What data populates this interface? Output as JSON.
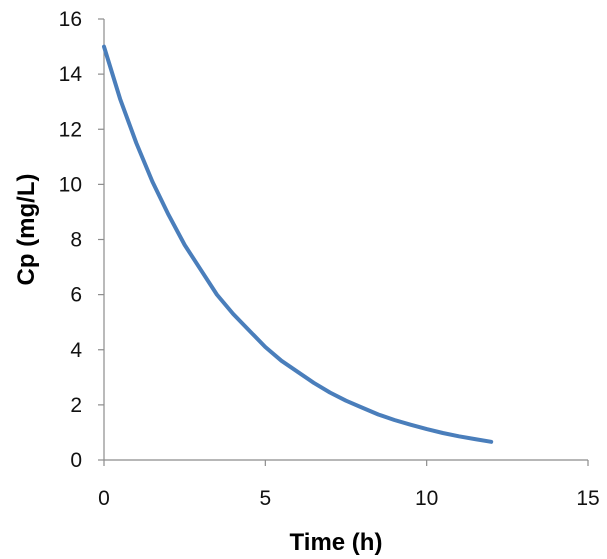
{
  "chart_data": {
    "type": "line",
    "title": "",
    "xlabel": "Time (h)",
    "ylabel": "Cp (mg/L)",
    "xlim": [
      0,
      15
    ],
    "ylim": [
      0,
      16
    ],
    "x_ticks": [
      0,
      5,
      10,
      15
    ],
    "y_ticks": [
      0,
      2,
      4,
      6,
      8,
      10,
      12,
      14,
      16
    ],
    "grid": false,
    "legend": "none",
    "series": [
      {
        "color": "#4a7ebb",
        "x": [
          0,
          0.5,
          1,
          1.5,
          2,
          2.5,
          3,
          3.5,
          4,
          4.5,
          5,
          5.5,
          6,
          6.5,
          7,
          7.5,
          8,
          8.5,
          9,
          9.5,
          10,
          10.5,
          11,
          11.5,
          12
        ],
        "y": [
          15.0,
          13.1,
          11.5,
          10.1,
          8.9,
          7.8,
          6.9,
          6.0,
          5.3,
          4.7,
          4.1,
          3.6,
          3.2,
          2.8,
          2.45,
          2.15,
          1.9,
          1.65,
          1.45,
          1.28,
          1.12,
          0.98,
          0.86,
          0.76,
          0.66
        ]
      }
    ]
  }
}
